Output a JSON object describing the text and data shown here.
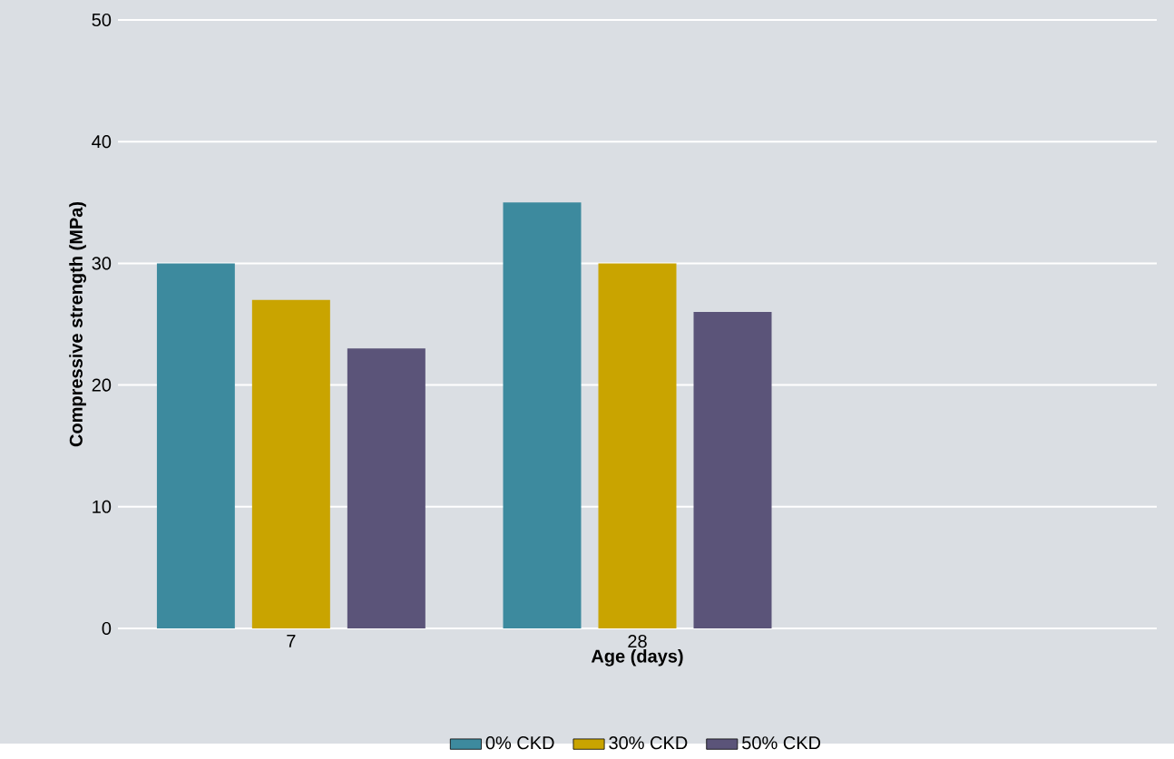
{
  "chart_data": {
    "type": "bar",
    "xlabel": "Age (days)",
    "ylabel": "Compressive strength (MPa)",
    "categories": [
      "7",
      "28",
      null
    ],
    "series": [
      {
        "name": "0% CKD",
        "color": "#3d8a9e",
        "values": [
          30,
          35,
          null
        ]
      },
      {
        "name": "30% CKD",
        "color": "#c9a400",
        "values": [
          27,
          30,
          null
        ]
      },
      {
        "name": "50% CKD",
        "color": "#5b5479",
        "values": [
          23,
          26,
          null
        ]
      }
    ],
    "ylim": [
      0,
      50
    ],
    "yticks": [
      0,
      10,
      20,
      30,
      40,
      50
    ],
    "grid": "y",
    "legend": "bottom"
  }
}
